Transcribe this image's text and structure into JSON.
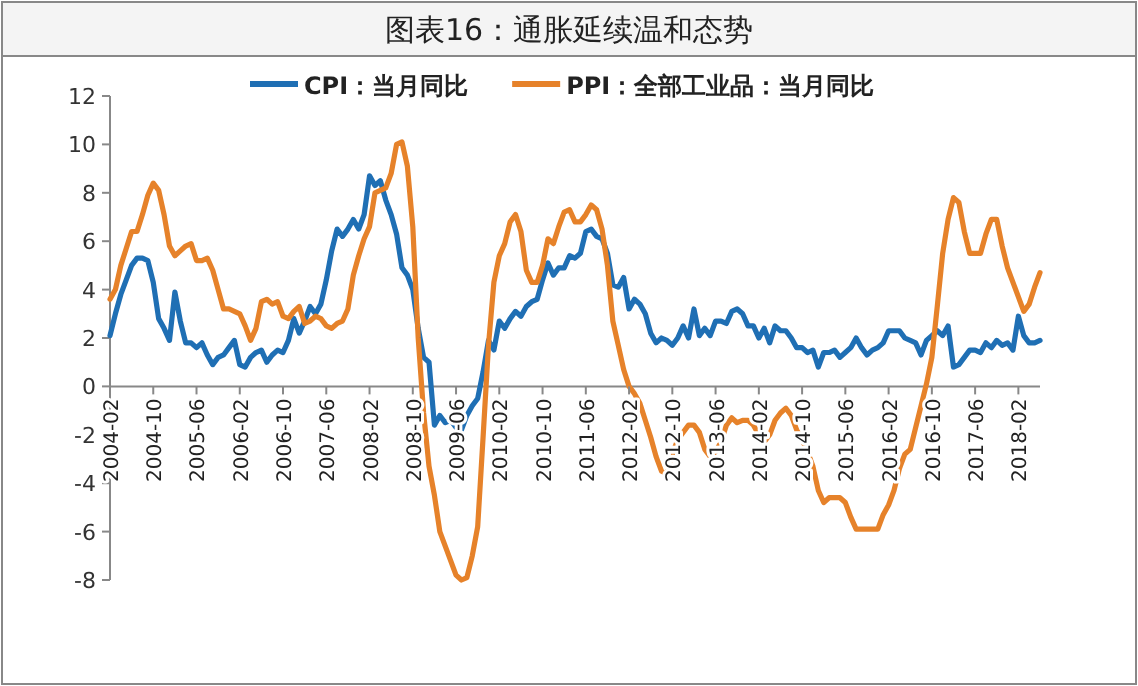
{
  "chart_data": {
    "type": "line",
    "title": "图表16：通胀延续温和态势",
    "x": [
      "2004-02",
      "2004-03",
      "2004-04",
      "2004-05",
      "2004-06",
      "2004-07",
      "2004-08",
      "2004-09",
      "2004-10",
      "2004-11",
      "2004-12",
      "2005-01",
      "2005-02",
      "2005-03",
      "2005-04",
      "2005-05",
      "2005-06",
      "2005-07",
      "2005-08",
      "2005-09",
      "2005-10",
      "2005-11",
      "2005-12",
      "2006-01",
      "2006-02",
      "2006-03",
      "2006-04",
      "2006-05",
      "2006-06",
      "2006-07",
      "2006-08",
      "2006-09",
      "2006-10",
      "2006-11",
      "2006-12",
      "2007-01",
      "2007-02",
      "2007-03",
      "2007-04",
      "2007-05",
      "2007-06",
      "2007-07",
      "2007-08",
      "2007-09",
      "2007-10",
      "2007-11",
      "2007-12",
      "2008-01",
      "2008-02",
      "2008-03",
      "2008-04",
      "2008-05",
      "2008-06",
      "2008-07",
      "2008-08",
      "2008-09",
      "2008-10",
      "2008-11",
      "2008-12",
      "2009-01",
      "2009-02",
      "2009-03",
      "2009-04",
      "2009-05",
      "2009-06",
      "2009-07",
      "2009-08",
      "2009-09",
      "2009-10",
      "2009-11",
      "2009-12",
      "2010-01",
      "2010-02",
      "2010-03",
      "2010-04",
      "2010-05",
      "2010-06",
      "2010-07",
      "2010-08",
      "2010-09",
      "2010-10",
      "2010-11",
      "2010-12",
      "2011-01",
      "2011-02",
      "2011-03",
      "2011-04",
      "2011-05",
      "2011-06",
      "2011-07",
      "2011-08",
      "2011-09",
      "2011-10",
      "2011-11",
      "2011-12",
      "2012-01",
      "2012-02",
      "2012-03",
      "2012-04",
      "2012-05",
      "2012-06",
      "2012-07",
      "2012-08",
      "2012-09",
      "2012-10",
      "2012-11",
      "2012-12",
      "2013-01",
      "2013-02",
      "2013-03",
      "2013-04",
      "2013-05",
      "2013-06",
      "2013-07",
      "2013-08",
      "2013-09",
      "2013-10",
      "2013-11",
      "2013-12",
      "2014-01",
      "2014-02",
      "2014-03",
      "2014-04",
      "2014-05",
      "2014-06",
      "2014-07",
      "2014-08",
      "2014-09",
      "2014-10",
      "2014-11",
      "2014-12",
      "2015-01",
      "2015-02",
      "2015-03",
      "2015-04",
      "2015-05",
      "2015-06",
      "2015-07",
      "2015-08",
      "2015-09",
      "2015-10",
      "2015-11",
      "2015-12",
      "2016-01",
      "2016-02",
      "2016-03",
      "2016-04",
      "2016-05",
      "2016-06",
      "2016-07",
      "2016-08",
      "2016-09",
      "2016-10",
      "2016-11",
      "2016-12",
      "2017-01",
      "2017-02",
      "2017-03",
      "2017-04",
      "2017-05",
      "2017-06",
      "2017-07",
      "2017-08",
      "2017-09",
      "2017-10",
      "2017-11",
      "2017-12",
      "2018-01",
      "2018-02",
      "2018-03",
      "2018-04",
      "2018-05",
      "2018-06"
    ],
    "series": [
      {
        "name": "CPI：当月同比",
        "color": "#1f6fb4",
        "values": [
          2.1,
          3.0,
          3.8,
          4.4,
          5.0,
          5.3,
          5.3,
          5.2,
          4.3,
          2.8,
          2.4,
          1.9,
          3.9,
          2.7,
          1.8,
          1.8,
          1.6,
          1.8,
          1.3,
          0.9,
          1.2,
          1.3,
          1.6,
          1.9,
          0.9,
          0.8,
          1.2,
          1.4,
          1.5,
          1.0,
          1.3,
          1.5,
          1.4,
          1.9,
          2.8,
          2.2,
          2.7,
          3.3,
          3.0,
          3.4,
          4.4,
          5.6,
          6.5,
          6.2,
          6.5,
          6.9,
          6.5,
          7.1,
          8.7,
          8.3,
          8.5,
          7.7,
          7.1,
          6.3,
          4.9,
          4.6,
          4.0,
          2.4,
          1.2,
          1.0,
          -1.6,
          -1.2,
          -1.5,
          -1.4,
          -1.7,
          -1.8,
          -1.2,
          -0.8,
          -0.5,
          0.6,
          1.9,
          1.5,
          2.7,
          2.4,
          2.8,
          3.1,
          2.9,
          3.3,
          3.5,
          3.6,
          4.4,
          5.1,
          4.6,
          4.9,
          4.9,
          5.4,
          5.3,
          5.5,
          6.4,
          6.5,
          6.2,
          6.1,
          5.5,
          4.2,
          4.1,
          4.5,
          3.2,
          3.6,
          3.4,
          3.0,
          2.2,
          1.8,
          2.0,
          1.9,
          1.7,
          2.0,
          2.5,
          2.0,
          3.2,
          2.1,
          2.4,
          2.1,
          2.7,
          2.7,
          2.6,
          3.1,
          3.2,
          3.0,
          2.5,
          2.5,
          2.0,
          2.4,
          1.8,
          2.5,
          2.3,
          2.3,
          2.0,
          1.6,
          1.6,
          1.4,
          1.5,
          0.8,
          1.4,
          1.4,
          1.5,
          1.2,
          1.4,
          1.6,
          2.0,
          1.6,
          1.3,
          1.5,
          1.6,
          1.8,
          2.3,
          2.3,
          2.3,
          2.0,
          1.9,
          1.8,
          1.3,
          1.9,
          2.1,
          2.3,
          2.1,
          2.5,
          0.8,
          0.9,
          1.2,
          1.5,
          1.5,
          1.4,
          1.8,
          1.6,
          1.9,
          1.7,
          1.8,
          1.5,
          2.9,
          2.1,
          1.8,
          1.8,
          1.9
        ]
      },
      {
        "name": "PPI：全部工业品：当月同比",
        "color": "#e6822a",
        "values": [
          3.6,
          4.0,
          5.0,
          5.7,
          6.4,
          6.4,
          7.1,
          7.9,
          8.4,
          8.1,
          7.1,
          5.8,
          5.4,
          5.6,
          5.8,
          5.9,
          5.2,
          5.2,
          5.3,
          4.8,
          4.0,
          3.2,
          3.2,
          3.1,
          3.0,
          2.5,
          1.9,
          2.4,
          3.5,
          3.6,
          3.4,
          3.5,
          2.9,
          2.8,
          3.1,
          3.3,
          2.6,
          2.7,
          2.9,
          2.8,
          2.5,
          2.4,
          2.6,
          2.7,
          3.2,
          4.6,
          5.4,
          6.1,
          6.6,
          8.0,
          8.1,
          8.2,
          8.8,
          10.0,
          10.1,
          9.1,
          6.6,
          2.0,
          -1.1,
          -3.3,
          -4.5,
          -6.0,
          -6.6,
          -7.2,
          -7.8,
          -8.0,
          -7.9,
          -7.0,
          -5.8,
          -2.1,
          1.7,
          4.3,
          5.4,
          5.9,
          6.8,
          7.1,
          6.4,
          4.8,
          4.3,
          4.3,
          5.0,
          6.1,
          5.9,
          6.6,
          7.2,
          7.3,
          6.8,
          6.8,
          7.1,
          7.5,
          7.3,
          6.5,
          5.0,
          2.7,
          1.7,
          0.7,
          0.0,
          -0.3,
          -0.7,
          -1.4,
          -2.1,
          -2.9,
          -3.5,
          -3.6,
          -2.8,
          -2.2,
          -1.9,
          -1.6,
          -1.6,
          -1.9,
          -2.6,
          -2.9,
          -2.7,
          -2.3,
          -1.6,
          -1.3,
          -1.5,
          -1.4,
          -1.4,
          -1.6,
          -2.0,
          -2.3,
          -2.0,
          -1.4,
          -1.1,
          -0.9,
          -1.2,
          -1.8,
          -2.2,
          -2.7,
          -3.3,
          -4.3,
          -4.8,
          -4.6,
          -4.6,
          -4.6,
          -4.8,
          -5.4,
          -5.9,
          -5.9,
          -5.9,
          -5.9,
          -5.9,
          -5.3,
          -4.9,
          -4.3,
          -3.4,
          -2.8,
          -2.6,
          -1.7,
          -0.8,
          0.1,
          1.2,
          3.3,
          5.5,
          6.9,
          7.8,
          7.6,
          6.4,
          5.5,
          5.5,
          5.5,
          6.3,
          6.9,
          6.9,
          5.8,
          4.9,
          4.3,
          3.7,
          3.1,
          3.4,
          4.1,
          4.7
        ]
      }
    ],
    "xlim": [
      "2004-02",
      "2018-06"
    ],
    "xticks": [
      "2004-02",
      "2004-10",
      "2005-06",
      "2006-02",
      "2006-10",
      "2007-06",
      "2008-02",
      "2008-10",
      "2009-06",
      "2010-02",
      "2010-10",
      "2011-06",
      "2012-02",
      "2012-10",
      "2013-06",
      "2014-02",
      "2014-10",
      "2015-06",
      "2016-02",
      "2016-10",
      "2017-06",
      "2018-02"
    ],
    "ylim": [
      -8,
      12
    ],
    "yticks": [
      -8,
      -6,
      -4,
      -2,
      0,
      2,
      4,
      6,
      8,
      10,
      12
    ],
    "grid": false,
    "legend": "top",
    "marker": "none",
    "line_style": "solid"
  }
}
